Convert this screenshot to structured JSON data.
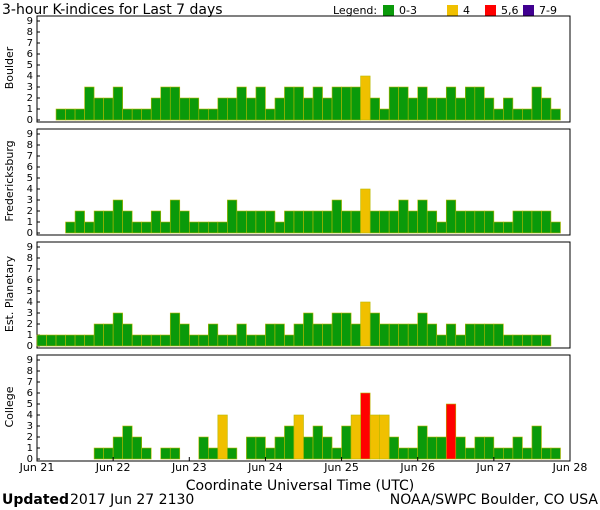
{
  "title": "3-hour K-indices for Last 7 days",
  "legend": {
    "title": "Legend:",
    "entries": [
      {
        "label": "0-3",
        "color": "#0a9a0a",
        "levels": [
          0,
          1,
          2,
          3
        ]
      },
      {
        "label": "4",
        "color": "#f0c000",
        "levels": [
          4
        ]
      },
      {
        "label": "5,6",
        "color": "#ff0000",
        "levels": [
          5,
          6
        ]
      },
      {
        "label": "7-9",
        "color": "#400090",
        "levels": [
          7,
          8,
          9
        ]
      }
    ]
  },
  "xlabel": "Coordinate Universal Time (UTC)",
  "xticks": [
    "Jun 21",
    "Jun 22",
    "Jun 23",
    "Jun 24",
    "Jun 25",
    "Jun 26",
    "Jun 27",
    "Jun 28"
  ],
  "footer": {
    "updated_label": "Updated",
    "updated_time": "2017 Jun 27 2130",
    "source": "NOAA/SWPC Boulder, CO USA"
  },
  "chart_data": [
    {
      "type": "bar",
      "ylabel": "Boulder",
      "ylim": [
        0,
        9
      ],
      "yticks": [
        0,
        1,
        2,
        3,
        4,
        5,
        6,
        7,
        8,
        9
      ],
      "values": [
        0,
        0,
        1,
        1,
        1,
        3,
        2,
        2,
        3,
        1,
        1,
        1,
        2,
        3,
        3,
        2,
        2,
        1,
        1,
        2,
        2,
        3,
        2,
        3,
        1,
        2,
        3,
        3,
        2,
        3,
        2,
        3,
        3,
        3,
        4,
        2,
        1,
        3,
        3,
        2,
        3,
        2,
        2,
        3,
        2,
        3,
        3,
        2,
        1,
        2,
        1,
        1,
        3,
        2,
        1,
        0
      ]
    },
    {
      "type": "bar",
      "ylabel": "Fredericksburg",
      "ylim": [
        0,
        9
      ],
      "yticks": [
        0,
        1,
        2,
        3,
        4,
        5,
        6,
        7,
        8,
        9
      ],
      "values": [
        0,
        0,
        0,
        1,
        2,
        1,
        2,
        2,
        3,
        2,
        1,
        1,
        2,
        1,
        3,
        2,
        1,
        1,
        1,
        1,
        3,
        2,
        2,
        2,
        2,
        1,
        2,
        2,
        2,
        2,
        2,
        3,
        2,
        2,
        4,
        2,
        2,
        2,
        3,
        2,
        3,
        2,
        1,
        3,
        2,
        2,
        2,
        2,
        1,
        1,
        2,
        2,
        2,
        2,
        1,
        0
      ]
    },
    {
      "type": "bar",
      "ylabel": "Est. Planetary",
      "ylim": [
        0,
        9
      ],
      "yticks": [
        0,
        1,
        2,
        3,
        4,
        5,
        6,
        7,
        8,
        9
      ],
      "values": [
        1,
        1,
        1,
        1,
        1,
        1,
        2,
        2,
        3,
        2,
        1,
        1,
        1,
        1,
        3,
        2,
        1,
        1,
        2,
        1,
        1,
        2,
        1,
        1,
        2,
        2,
        1,
        2,
        3,
        2,
        2,
        3,
        3,
        2,
        4,
        3,
        2,
        2,
        2,
        2,
        3,
        2,
        1,
        2,
        1,
        2,
        2,
        2,
        2,
        1,
        1,
        1,
        1,
        1,
        0,
        0
      ]
    },
    {
      "type": "bar",
      "ylabel": "College",
      "ylim": [
        0,
        9
      ],
      "yticks": [
        0,
        1,
        2,
        3,
        4,
        5,
        6,
        7,
        8,
        9
      ],
      "values": [
        0,
        0,
        0,
        0,
        0,
        0,
        1,
        1,
        2,
        3,
        2,
        1,
        0,
        1,
        1,
        0,
        0,
        2,
        1,
        4,
        1,
        0,
        2,
        2,
        1,
        2,
        3,
        4,
        2,
        3,
        2,
        1,
        3,
        4,
        6,
        4,
        4,
        2,
        1,
        1,
        3,
        2,
        2,
        5,
        2,
        1,
        2,
        2,
        1,
        1,
        2,
        1,
        3,
        1,
        1,
        0
      ]
    }
  ]
}
